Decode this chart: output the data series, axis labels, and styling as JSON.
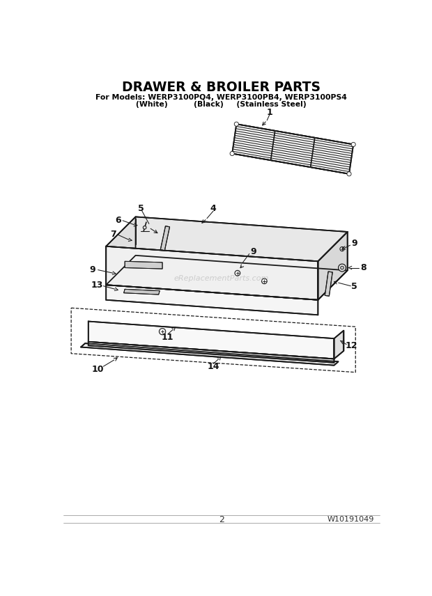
{
  "title": "DRAWER & BROILER PARTS",
  "subtitle1": "For Models: WERP3100PQ4, WERP3100PB4, WERP3100PS4",
  "subtitle2": "(White)          (Black)     (Stainless Steel)",
  "page_num": "2",
  "part_num": "W10191049",
  "watermark": "eReplacementParts.com",
  "bg_color": "#ffffff",
  "line_color": "#1a1a1a",
  "label_color": "#111111",
  "title_color": "#000000",
  "fig_width": 6.2,
  "fig_height": 8.56
}
